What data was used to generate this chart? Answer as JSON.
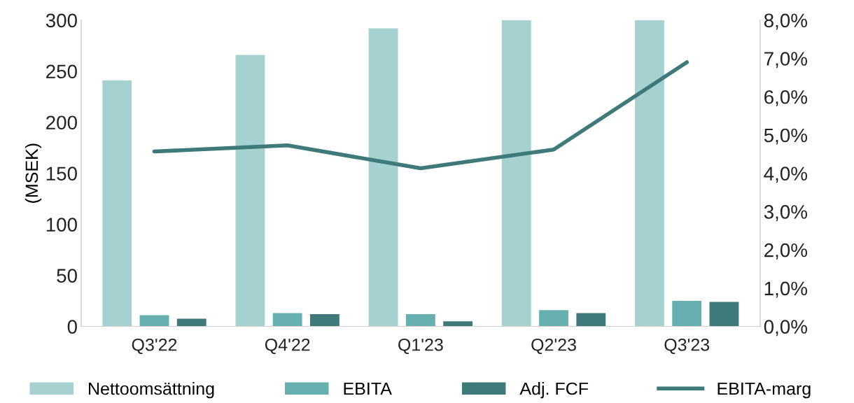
{
  "chart_data": {
    "type": "bar",
    "ylabel": "(MSEK)",
    "categories": [
      "Q3'22",
      "Q4'22",
      "Q1'23",
      "Q2'23",
      "Q3'23"
    ],
    "series": [
      {
        "name": "Nettoomsättning",
        "color": "#a6d1d1",
        "values": [
          241,
          266,
          292,
          300,
          300
        ]
      },
      {
        "name": "EBITA",
        "color": "#66b0b0",
        "values": [
          11,
          13,
          12,
          16,
          25
        ]
      },
      {
        "name": "Adj. FCF",
        "color": "#3f7a7a",
        "values": [
          7.5,
          12,
          5,
          13,
          24
        ]
      },
      {
        "name": "EBITA-marg",
        "type": "line",
        "axis": "y2",
        "color": "#3f7a7a",
        "values": [
          4.57,
          4.73,
          4.13,
          4.62,
          6.9
        ]
      }
    ],
    "ylim": [
      0,
      300
    ],
    "yticks": [
      0,
      50,
      100,
      150,
      200,
      250,
      300
    ],
    "y2lim": [
      0,
      8
    ],
    "y2ticks": [
      {
        "value": 0,
        "label": "0,0%"
      },
      {
        "value": 1,
        "label": "1,0%"
      },
      {
        "value": 2,
        "label": "2,0%"
      },
      {
        "value": 3,
        "label": "3,0%"
      },
      {
        "value": 4,
        "label": "4,0%"
      },
      {
        "value": 5,
        "label": "5,0%"
      },
      {
        "value": 6,
        "label": "6,0%"
      },
      {
        "value": 7,
        "label": "7,0%"
      },
      {
        "value": 8,
        "label": "8,0%"
      }
    ],
    "grid": false,
    "legend": "bottom",
    "marker": "none"
  }
}
